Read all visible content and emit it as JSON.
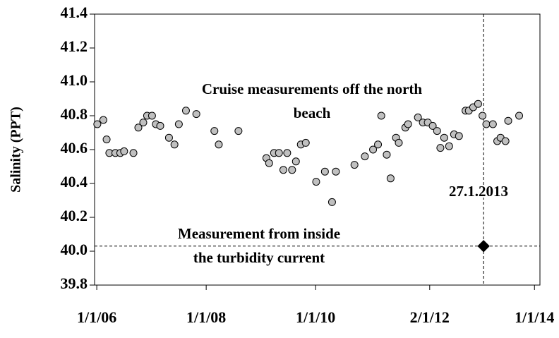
{
  "chart_data": {
    "type": "scatter",
    "y_label": "Salinity (PPT)",
    "xlim": [
      2005.96,
      2014.1
    ],
    "ylim": [
      39.8,
      41.4
    ],
    "xticks": [
      {
        "value": 2006,
        "label": "1/1/06"
      },
      {
        "value": 2008,
        "label": "1/1/08"
      },
      {
        "value": 2010,
        "label": "1/1/10"
      },
      {
        "value": 2012.085,
        "label": "2/1/12"
      },
      {
        "value": 2014,
        "label": "1/1/14"
      }
    ],
    "yticks": [
      39.8,
      {
        "value": 40,
        "label": "40.0"
      },
      40.2,
      40.4,
      40.6,
      40.8,
      {
        "value": 41,
        "label": "41.0"
      },
      41.2,
      41.4
    ],
    "series": [
      {
        "name": "Cruise measurements off the north beach",
        "color": "#c0c0c0",
        "marker": "circle",
        "x": [
          2006.01,
          2006.12,
          2006.18,
          2006.23,
          2006.34,
          2006.43,
          2006.5,
          2006.67,
          2006.76,
          2006.85,
          2006.92,
          2007.01,
          2007.08,
          2007.16,
          2007.32,
          2007.42,
          2007.5,
          2007.63,
          2007.82,
          2008.15,
          2008.23,
          2008.59,
          2009.1,
          2009.15,
          2009.24,
          2009.33,
          2009.41,
          2009.48,
          2009.57,
          2009.64,
          2009.73,
          2009.82,
          2010.01,
          2010.17,
          2010.3,
          2010.37,
          2010.71,
          2010.9,
          2011.05,
          2011.14,
          2011.2,
          2011.3,
          2011.37,
          2011.47,
          2011.52,
          2011.64,
          2011.69,
          2011.87,
          2011.96,
          2012.05,
          2012.14,
          2012.22,
          2012.28,
          2012.35,
          2012.44,
          2012.53,
          2012.62,
          2012.74,
          2012.8,
          2012.88,
          2012.97,
          2013.05,
          2013.12,
          2013.24,
          2013.32,
          2013.38,
          2013.47,
          2013.52,
          2013.72
        ],
        "values": [
          40.75,
          40.775,
          40.66,
          40.58,
          40.58,
          40.58,
          40.59,
          40.58,
          40.73,
          40.76,
          40.8,
          40.8,
          40.75,
          40.74,
          40.67,
          40.63,
          40.75,
          40.83,
          40.81,
          40.71,
          40.63,
          40.71,
          40.55,
          40.52,
          40.58,
          40.58,
          40.48,
          40.58,
          40.48,
          40.53,
          40.63,
          40.64,
          40.41,
          40.47,
          40.29,
          40.47,
          40.51,
          40.56,
          40.6,
          40.63,
          40.8,
          40.57,
          40.43,
          40.67,
          40.64,
          40.73,
          40.75,
          40.79,
          40.76,
          40.76,
          40.74,
          40.71,
          40.61,
          40.67,
          40.62,
          40.69,
          40.68,
          40.83,
          40.83,
          40.85,
          40.87,
          40.8,
          40.75,
          40.75,
          40.65,
          40.67,
          40.65,
          40.77,
          40.8
        ]
      },
      {
        "name": "Measurement from inside the turbidity current",
        "color": "#000000",
        "marker": "diamond",
        "x": [
          2013.07
        ],
        "values": [
          40.03
        ]
      }
    ],
    "reference_lines": {
      "x": 2013.07,
      "y": 40.03
    },
    "annotations": [
      {
        "lines": [
          "Cruise measurements off the north",
          "beach"
        ]
      },
      {
        "lines": [
          "Measurement from inside",
          "the turbidity current"
        ]
      },
      {
        "lines": [
          "27.1.2013"
        ]
      }
    ]
  }
}
